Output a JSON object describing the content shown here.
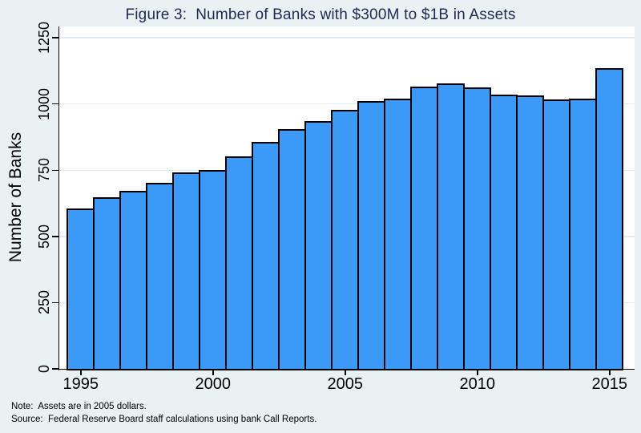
{
  "figure": {
    "note": "Note:  Assets are in 2005 dollars.",
    "source": "Source:  Federal Reserve Board staff calculations using bank Call Reports."
  },
  "chart_data": {
    "type": "bar",
    "title": "Figure 3:  Number of Banks with $300M to $1B in Assets",
    "xlabel": "",
    "ylabel": "Number of Banks",
    "categories": [
      1995,
      1996,
      1997,
      1998,
      1999,
      2000,
      2001,
      2002,
      2003,
      2004,
      2005,
      2006,
      2007,
      2008,
      2009,
      2010,
      2011,
      2012,
      2013,
      2014,
      2015
    ],
    "values": [
      605,
      645,
      670,
      700,
      740,
      750,
      800,
      855,
      905,
      935,
      975,
      1010,
      1020,
      1065,
      1075,
      1060,
      1035,
      1030,
      1015,
      1020,
      1135
    ],
    "ylim": [
      0,
      1250
    ],
    "y_ticks": [
      0,
      250,
      500,
      750,
      1000,
      1250
    ],
    "x_tick_labels": [
      "1995",
      "2000",
      "2005",
      "2010",
      "2015"
    ],
    "grid": true,
    "legend_position": "none",
    "colors": {
      "bar_fill": "#3B99F7",
      "bar_border": "#000000",
      "background": "#EAF1F3",
      "plot_background": "#FFFFFF",
      "gridline": "#E2ECF2",
      "title_text": "#1C2A55",
      "axis_text": "#000000"
    },
    "notes": [
      "Note:  Assets are in 2005 dollars.",
      "Source:  Federal Reserve Board staff calculations using bank Call Reports."
    ]
  }
}
